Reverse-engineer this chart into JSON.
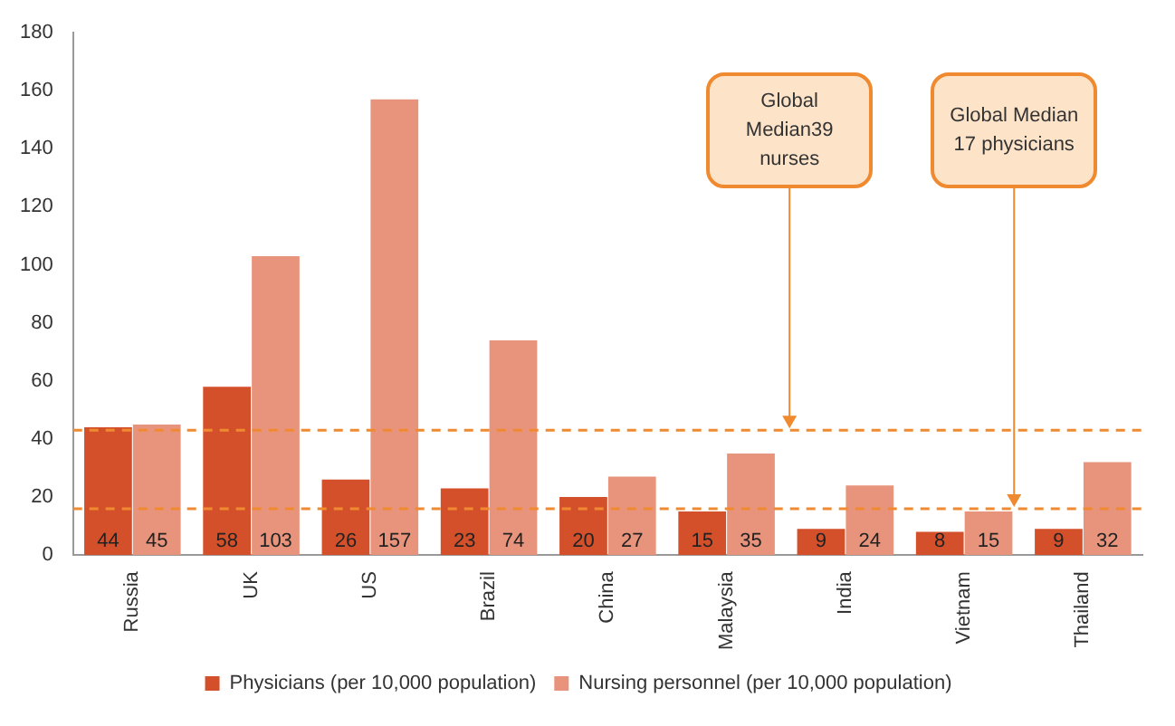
{
  "chart_data": {
    "type": "bar",
    "categories": [
      "Russia",
      "UK",
      "US",
      "Brazil",
      "China",
      "Malaysia",
      "India",
      "Vietnam",
      "Thailand"
    ],
    "series": [
      {
        "name": "Physicians (per 10,000 population)",
        "color": "#d4502a",
        "values": [
          44,
          58,
          26,
          23,
          20,
          15,
          9,
          8,
          9
        ]
      },
      {
        "name": "Nursing personnel (per 10,000 population)",
        "color": "#e8947c",
        "values": [
          45,
          103,
          157,
          74,
          27,
          35,
          24,
          15,
          32
        ]
      }
    ],
    "ylim": [
      0,
      180
    ],
    "yticks": [
      0,
      20,
      40,
      60,
      80,
      100,
      120,
      140,
      160,
      180
    ],
    "grid": false,
    "legend": "bottom",
    "data_labels": true,
    "ref_lines": [
      {
        "axis": "y",
        "value": 43,
        "color": "#f08a30",
        "line_style": "dashed"
      },
      {
        "axis": "y",
        "value": 16,
        "color": "#f08a30",
        "line_style": "dashed"
      }
    ],
    "annotations": [
      {
        "text": "Global Median39 nurses",
        "y": 43
      },
      "Global Median 17 physicians"
    ]
  }
}
